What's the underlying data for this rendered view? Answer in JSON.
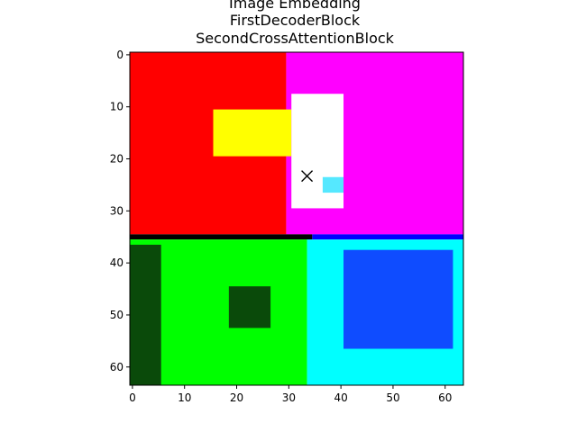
{
  "chart_data": {
    "type": "heatmap",
    "title_lines": [
      "Image Embedding",
      "FirstDecoderBlock",
      "SecondCrossAttentionBlock"
    ],
    "grid_size": 64,
    "xlim": [
      -0.5,
      63.5
    ],
    "ylim": [
      63.5,
      -0.5
    ],
    "x_ticks": [
      0,
      10,
      20,
      30,
      40,
      50,
      60
    ],
    "y_ticks": [
      0,
      10,
      20,
      30,
      40,
      50,
      60
    ],
    "colors": {
      "red": "#ff0000",
      "magenta": "#ff00ff",
      "yellow": "#ffff00",
      "white": "#ffffff",
      "green": "#00ff00",
      "cyan": "#00ffff",
      "blue": "#0000ff",
      "black": "#000000",
      "dark_green": "#0a4a0a",
      "mid_blue": "#0f4cff",
      "light_cyan": "#55e8ff"
    },
    "regions": [
      {
        "name": "red-top-left",
        "x": [
          -0.5,
          29.5
        ],
        "y": [
          -0.5,
          34.5
        ],
        "color": "red"
      },
      {
        "name": "magenta-top-right",
        "x": [
          29.5,
          63.5
        ],
        "y": [
          -0.5,
          34.5
        ],
        "color": "magenta"
      },
      {
        "name": "yellow-object",
        "x": [
          15.5,
          30.5
        ],
        "y": [
          10.5,
          19.5
        ],
        "color": "yellow"
      },
      {
        "name": "white-object",
        "x": [
          30.5,
          40.5
        ],
        "y": [
          7.5,
          29.5
        ],
        "color": "white"
      },
      {
        "name": "cyan-patch",
        "x": [
          36.5,
          40.5
        ],
        "y": [
          23.5,
          26.5
        ],
        "color": "light_cyan"
      },
      {
        "name": "black-divider-left",
        "x": [
          -0.5,
          34.5
        ],
        "y": [
          34.5,
          35.5
        ],
        "color": "black"
      },
      {
        "name": "blue-divider-right",
        "x": [
          34.5,
          63.5
        ],
        "y": [
          34.5,
          35.5
        ],
        "color": "blue"
      },
      {
        "name": "green-bottom-left",
        "x": [
          -0.5,
          33.5
        ],
        "y": [
          35.5,
          63.5
        ],
        "color": "green"
      },
      {
        "name": "cyan-bottom-right",
        "x": [
          33.5,
          63.5
        ],
        "y": [
          35.5,
          63.5
        ],
        "color": "cyan"
      },
      {
        "name": "dark-left-edge",
        "x": [
          -0.5,
          5.5
        ],
        "y": [
          36.5,
          63.5
        ],
        "color": "dark_green"
      },
      {
        "name": "dark-blob-center",
        "x": [
          18.5,
          26.5
        ],
        "y": [
          44.5,
          52.5
        ],
        "color": "dark_green"
      },
      {
        "name": "blue-blob-right",
        "x": [
          40.5,
          61.5
        ],
        "y": [
          37.5,
          56.5
        ],
        "color": "mid_blue"
      }
    ],
    "marker": {
      "x": 33.5,
      "y": 23.3,
      "symbol": "x",
      "color": "#000000"
    }
  }
}
